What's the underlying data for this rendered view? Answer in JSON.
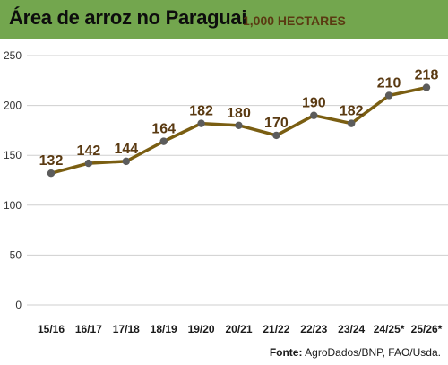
{
  "header": {
    "title": "Área de arroz no Paraguai",
    "subtitle": "1,000 HECTARES"
  },
  "source": {
    "label": "Fonte:",
    "text": "AgroDados/BNP, FAO/Usda."
  },
  "colors": {
    "header_bg": "#73a64e",
    "line": "#7a5e12",
    "point": "#5c5c5c",
    "label": "#5a3a12",
    "grid": "#cfcfcf"
  },
  "chart_data": {
    "type": "line",
    "categories": [
      "15/16",
      "16/17",
      "17/18",
      "18/19",
      "19/20",
      "20/21",
      "21/22",
      "22/23",
      "23/24",
      "24/25*",
      "25/26*"
    ],
    "series": [
      {
        "values": [
          132,
          142,
          144,
          164,
          182,
          180,
          170,
          190,
          182,
          210,
          218
        ]
      }
    ],
    "data_labels": [
      "132",
      "142",
      "144",
      "164",
      "182",
      "180",
      "170",
      "190",
      "182",
      "210",
      "218"
    ],
    "yticks": [
      0,
      50,
      100,
      150,
      200,
      250
    ],
    "ylim": [
      0,
      250
    ],
    "grid": true,
    "title": "Área de arroz no Paraguai",
    "subtitle": "1,000 HECTARES",
    "xlabel": "",
    "ylabel": ""
  }
}
